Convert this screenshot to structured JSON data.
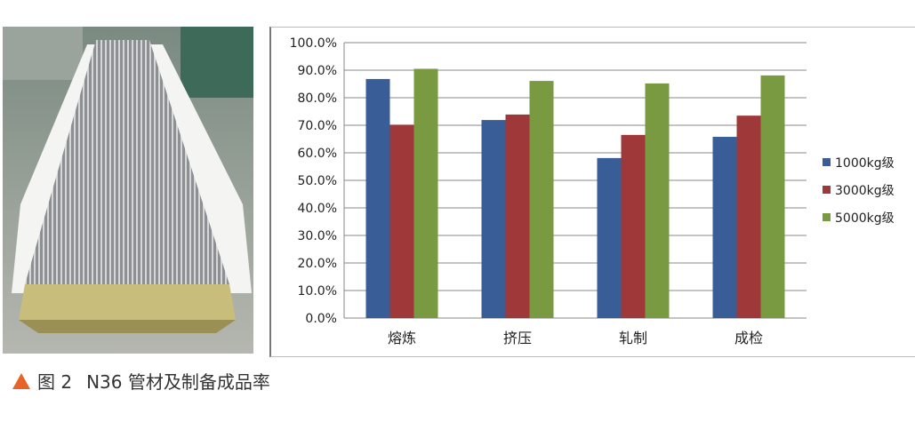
{
  "caption": {
    "label": "图 2",
    "text": "N36 管材及制备成品率"
  },
  "colors": {
    "series": [
      "#385d97",
      "#9f3939",
      "#7a9a41"
    ],
    "caption_marker": "#e8632a"
  },
  "chart_data": {
    "type": "bar",
    "categories": [
      "熔炼",
      "挤压",
      "轧制",
      "成检"
    ],
    "series": [
      {
        "name": "1000kg级",
        "values": [
          86.8,
          71.9,
          58.1,
          65.8
        ]
      },
      {
        "name": "3000kg级",
        "values": [
          70.2,
          73.9,
          66.5,
          73.5
        ]
      },
      {
        "name": "5000kg级",
        "values": [
          90.5,
          86.1,
          85.2,
          88.1
        ]
      }
    ],
    "ylim": [
      0,
      100
    ],
    "yticks": [
      "0.0%",
      "10.0%",
      "20.0%",
      "30.0%",
      "40.0%",
      "50.0%",
      "60.0%",
      "70.0%",
      "80.0%",
      "90.0%",
      "100.0%"
    ],
    "grid": true,
    "legend": "right"
  }
}
